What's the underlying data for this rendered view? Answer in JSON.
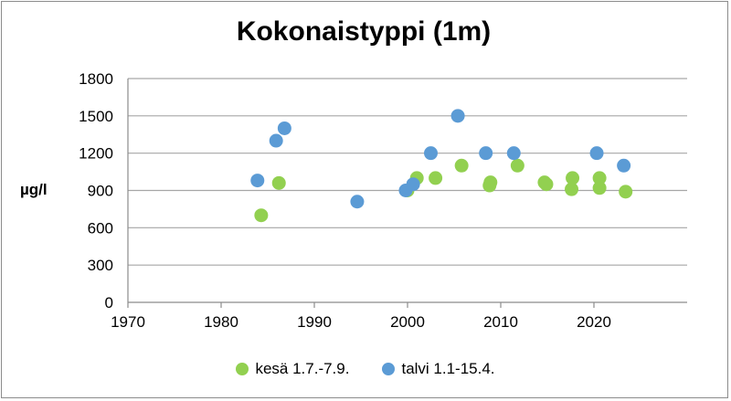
{
  "chart_data": {
    "type": "scatter",
    "title": "Kokonaistyppi (1m)",
    "ylabel": "µg/l",
    "xlabel": "",
    "xlim": [
      1970,
      2030
    ],
    "ylim": [
      0,
      1800
    ],
    "xticks": [
      "1970",
      "1980",
      "1990",
      "2000",
      "2010",
      "2020"
    ],
    "xtick_values": [
      1970,
      1980,
      1990,
      2000,
      2010,
      2020
    ],
    "yticks": [
      "0",
      "300",
      "600",
      "900",
      "1200",
      "1500",
      "1800"
    ],
    "ytick_values": [
      0,
      300,
      600,
      900,
      1200,
      1500,
      1800
    ],
    "grid": "horizontal",
    "legend_position": "bottom",
    "series": [
      {
        "name": "kesä 1.7.-7.9.",
        "color": "#92d050",
        "points": [
          [
            1984.3,
            700
          ],
          [
            1986.2,
            960
          ],
          [
            2000.0,
            900
          ],
          [
            2001.0,
            1000
          ],
          [
            2003.0,
            1000
          ],
          [
            2005.8,
            1100
          ],
          [
            2008.8,
            940
          ],
          [
            2008.9,
            965
          ],
          [
            2011.8,
            1100
          ],
          [
            2014.7,
            965
          ],
          [
            2014.9,
            950
          ],
          [
            2017.6,
            910
          ],
          [
            2017.7,
            1000
          ],
          [
            2020.6,
            920
          ],
          [
            2020.6,
            1000
          ],
          [
            2023.4,
            890
          ]
        ]
      },
      {
        "name": "talvi 1.1-15.4.",
        "color": "#5b9bd5",
        "points": [
          [
            1983.9,
            980
          ],
          [
            1985.9,
            1300
          ],
          [
            1986.8,
            1400
          ],
          [
            1994.6,
            810
          ],
          [
            1999.8,
            900
          ],
          [
            2000.6,
            950
          ],
          [
            2002.5,
            1200
          ],
          [
            2005.4,
            1500
          ],
          [
            2008.4,
            1200
          ],
          [
            2011.4,
            1200
          ],
          [
            2020.3,
            1200
          ],
          [
            2023.2,
            1100
          ]
        ]
      }
    ]
  }
}
